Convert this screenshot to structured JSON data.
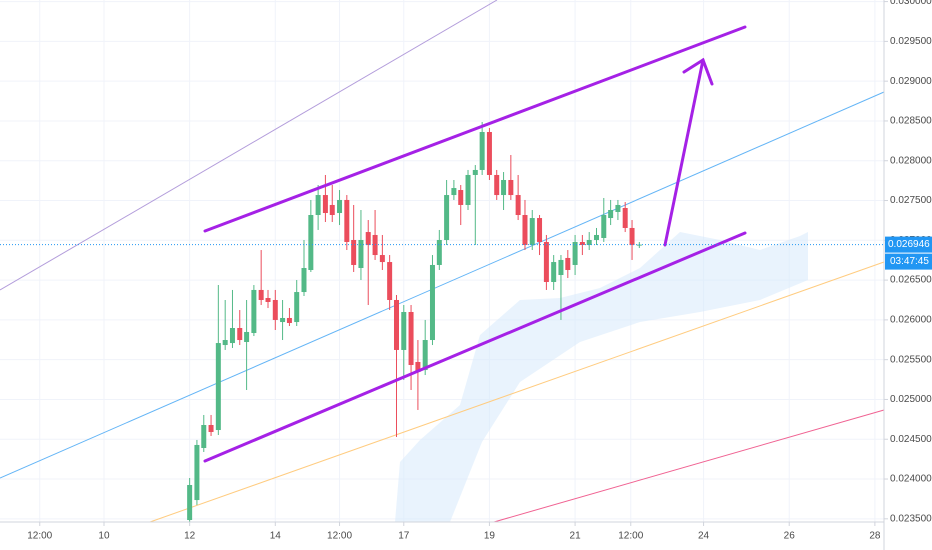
{
  "chart_data": {
    "type": "candlestick",
    "x": [
      12,
      12.17,
      12.33,
      12.5,
      12.67,
      12.83,
      13,
      13.17,
      13.33,
      13.5,
      13.67,
      13.83,
      14,
      14.17,
      14.33,
      14.5,
      14.67,
      14.83,
      15,
      15.17,
      15.33,
      15.5,
      15.67,
      15.83,
      16,
      16.17,
      16.33,
      16.5,
      16.67,
      16.83,
      17,
      17.17,
      17.33,
      17.5,
      17.67,
      17.83,
      18,
      18.17,
      18.33,
      18.5,
      18.67,
      18.83,
      19,
      19.17,
      19.33,
      19.5,
      19.67,
      19.83,
      20,
      20.17,
      20.33,
      20.5,
      20.67,
      20.83,
      21,
      21.17,
      21.33,
      21.5,
      21.67,
      21.83,
      22,
      22.17,
      22.33,
      22.5
    ],
    "open": [
      0.023485,
      0.023736,
      0.02439,
      0.024679,
      0.024616,
      0.025684,
      0.025709,
      0.025898,
      0.025722,
      0.025835,
      0.026376,
      0.026275,
      0.02625,
      0.025973,
      0.026024,
      0.025973,
      0.02635,
      0.026627,
      0.027318,
      0.027569,
      0.027444,
      0.027343,
      0.027507,
      0.027004,
      0.026652,
      0.027104,
      0.027067,
      0.026815,
      0.026727,
      0.02625,
      0.025622,
      0.026099,
      0.025471,
      0.02537,
      0.025747,
      0.02669,
      0.027004,
      0.027569,
      0.027632,
      0.027444,
      0.027821,
      0.027884,
      0.028361,
      0.027821,
      0.027569,
      0.027758,
      0.027569,
      0.027318,
      0.026941,
      0.02728,
      0.026979,
      0.026476,
      0.026564,
      0.026778,
      0.02669,
      0.026979,
      0.026941,
      0.027004,
      0.027029,
      0.02728,
      0.027356,
      0.027406,
      0.027155,
      0.026941
    ],
    "high": [
      0.024013,
      0.024491,
      0.024805,
      0.024805,
      0.026438,
      0.02625,
      0.026376,
      0.026124,
      0.02625,
      0.026438,
      0.026878,
      0.026376,
      0.026376,
      0.02625,
      0.026149,
      0.026501,
      0.027004,
      0.027507,
      0.027695,
      0.027821,
      0.027695,
      0.027632,
      0.027569,
      0.027444,
      0.027381,
      0.027255,
      0.027381,
      0.027067,
      0.026815,
      0.026313,
      0.026187,
      0.026187,
      0.025747,
      0.025999,
      0.026815,
      0.02713,
      0.027758,
      0.027758,
      0.027695,
      0.027884,
      0.027946,
      0.028487,
      0.028411,
      0.027884,
      0.027858,
      0.028072,
      0.027821,
      0.027507,
      0.027381,
      0.027318,
      0.027067,
      0.026815,
      0.026815,
      0.026878,
      0.027067,
      0.027067,
      0.027104,
      0.027155,
      0.027532,
      0.027507,
      0.027507,
      0.027481,
      0.027255,
      0.026979
    ],
    "low": [
      0.02346,
      0.023674,
      0.02434,
      0.024541,
      0.024554,
      0.025622,
      0.025647,
      0.025684,
      0.025119,
      0.025797,
      0.026187,
      0.026149,
      0.025873,
      0.025747,
      0.025923,
      0.025923,
      0.0263,
      0.026602,
      0.02713,
      0.02723,
      0.02723,
      0.027192,
      0.026878,
      0.026602,
      0.026501,
      0.026187,
      0.026753,
      0.026627,
      0.026124,
      0.024528,
      0.025245,
      0.025119,
      0.024868,
      0.025307,
      0.025684,
      0.026627,
      0.026941,
      0.027507,
      0.027192,
      0.027381,
      0.026941,
      0.027821,
      0.027758,
      0.027507,
      0.027381,
      0.027507,
      0.027255,
      0.026878,
      0.026878,
      0.026815,
      0.026376,
      0.026376,
      0.025999,
      0.026526,
      0.026564,
      0.026815,
      0.026878,
      0.026941,
      0.026979,
      0.027192,
      0.027255,
      0.027104,
      0.026753,
      0.026903
    ],
    "close": [
      0.023925,
      0.024428,
      0.024679,
      0.024591,
      0.025709,
      0.025747,
      0.025898,
      0.025747,
      0.025848,
      0.026376,
      0.02625,
      0.026225,
      0.025999,
      0.026024,
      0.025961,
      0.02635,
      0.026652,
      0.027318,
      0.027569,
      0.027343,
      0.027318,
      0.027507,
      0.026979,
      0.02669,
      0.027004,
      0.026941,
      0.026815,
      0.026727,
      0.02625,
      0.025622,
      0.026099,
      0.025433,
      0.025345,
      0.025747,
      0.02669,
      0.027004,
      0.027569,
      0.027657,
      0.027444,
      0.027821,
      0.027884,
      0.028361,
      0.027821,
      0.027569,
      0.027758,
      0.027569,
      0.027318,
      0.026941,
      0.02728,
      0.026979,
      0.026476,
      0.026727,
      0.026753,
      0.026627,
      0.026979,
      0.026941,
      0.027004,
      0.027067,
      0.027318,
      0.027381,
      0.027444,
      0.027155,
      0.026941,
      0.026946
    ],
    "up_color": "#53b987",
    "down_color": "#eb4d5c",
    "xlim": [
      7.572,
      28.213
    ],
    "ylim": [
      0.02346,
      0.03002
    ],
    "xticks": [
      {
        "value": 8.5,
        "label": "12:00"
      },
      10,
      12,
      14,
      {
        "value": 15.5,
        "label": "12:00"
      },
      17,
      19,
      21,
      {
        "value": 22.3,
        "label": "12:00"
      },
      24,
      26,
      28
    ],
    "yticks": [
      {
        "value": 0.0235,
        "label": "0.023500"
      },
      {
        "value": 0.024,
        "label": "0.024000"
      },
      {
        "value": 0.0245,
        "label": "0.024500"
      },
      {
        "value": 0.025,
        "label": "0.025000"
      },
      {
        "value": 0.0255,
        "label": "0.025500"
      },
      {
        "value": 0.026,
        "label": "0.026000"
      },
      {
        "value": 0.0265,
        "label": "0.026500"
      },
      {
        "value": 0.027,
        "label": "0.027000"
      },
      {
        "value": 0.0275,
        "label": "0.027500"
      },
      {
        "value": 0.028,
        "label": "0.028000"
      },
      {
        "value": 0.0285,
        "label": "0.028500"
      },
      {
        "value": 0.029,
        "label": "0.029000"
      },
      {
        "value": 0.0295,
        "label": "0.029500"
      },
      {
        "value": 0.03,
        "label": "0.030000"
      }
    ],
    "grid": true,
    "last_price": {
      "value": 0.026946,
      "label": "0.026946"
    },
    "countdown": "03:47:45"
  }
}
